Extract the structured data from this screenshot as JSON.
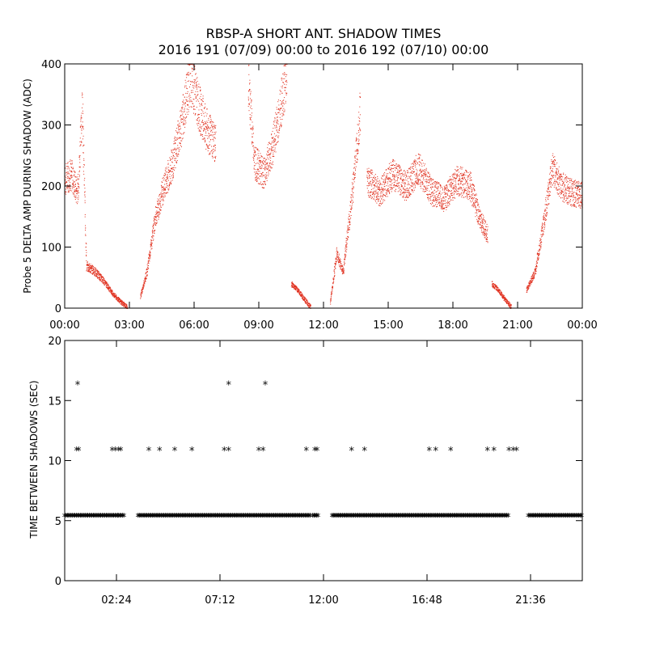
{
  "title_line1": "RBSP-A SHORT ANT. SHADOW TIMES",
  "title_line2": "2016 191 (07/09) 00:00 to 2016 192 (07/10) 00:00",
  "chart_data": [
    {
      "type": "scatter",
      "ylabel": "Probe 5 DELTA AMP DURING SHADOW (ADC)",
      "xlabel": "",
      "xlim_hours": [
        0,
        24
      ],
      "ylim": [
        0,
        400
      ],
      "x_tick_labels": [
        "00:00",
        "03:00",
        "06:00",
        "09:00",
        "12:00",
        "15:00",
        "18:00",
        "21:00",
        "00:00"
      ],
      "y_tick_labels": [
        "0",
        "100",
        "200",
        "300",
        "400"
      ],
      "color": "#e0301e",
      "segments": [
        {
          "x": [
            0.0,
            0.3,
            0.6,
            0.8,
            1.0,
            1.4,
            1.8,
            2.2,
            2.6,
            2.9
          ],
          "y": [
            210,
            220,
            190,
            330,
            70,
            60,
            45,
            25,
            10,
            2
          ]
        },
        {
          "x": [
            3.5,
            3.8,
            4.2,
            4.6,
            5.0,
            5.4,
            5.8,
            6.2,
            6.6,
            7.0
          ],
          "y": [
            20,
            60,
            150,
            200,
            240,
            300,
            380,
            330,
            290,
            270
          ]
        },
        {
          "x": [
            8.5,
            8.8,
            9.2,
            9.6,
            10.0,
            10.3
          ],
          "y": [
            370,
            240,
            220,
            260,
            330,
            390
          ]
        },
        {
          "x": [
            10.5,
            10.8,
            11.1,
            11.4
          ],
          "y": [
            40,
            30,
            15,
            2
          ]
        },
        {
          "x": [
            12.3,
            12.6,
            12.9,
            13.3,
            13.7
          ],
          "y": [
            10,
            90,
            60,
            180,
            330
          ]
        },
        {
          "x": [
            14.0,
            14.6,
            15.2,
            15.8,
            16.4,
            17.0,
            17.6,
            18.2,
            18.8,
            19.2,
            19.6
          ],
          "y": [
            210,
            190,
            220,
            200,
            230,
            190,
            180,
            210,
            200,
            150,
            120
          ]
        },
        {
          "x": [
            19.8,
            20.1,
            20.4,
            20.7
          ],
          "y": [
            40,
            30,
            15,
            2
          ]
        },
        {
          "x": [
            21.4,
            21.8,
            22.2,
            22.6,
            23.0,
            23.5,
            24.0
          ],
          "y": [
            30,
            60,
            140,
            230,
            200,
            190,
            185
          ]
        }
      ]
    },
    {
      "type": "scatter",
      "ylabel": "TIME BETWEEN SHADOWS (SEC)",
      "xlabel": "",
      "xlim_hours": [
        0,
        24
      ],
      "ylim": [
        0,
        20
      ],
      "x_tick_labels": [
        "02:24",
        "07:12",
        "12:00",
        "16:48",
        "21:36"
      ],
      "x_tick_hours": [
        2.4,
        7.2,
        12.0,
        16.8,
        21.6
      ],
      "y_tick_labels": [
        "0",
        "5",
        "10",
        "15",
        "20"
      ],
      "marker": "*",
      "baseline_value": 5.4,
      "baseline_ranges": [
        [
          0.0,
          2.5
        ],
        [
          2.5,
          2.8
        ],
        [
          3.4,
          11.4
        ],
        [
          11.5,
          11.8
        ],
        [
          12.4,
          20.6
        ],
        [
          21.5,
          24.0
        ]
      ],
      "points_11": [
        0.55,
        0.65,
        2.2,
        2.35,
        2.5,
        2.6,
        3.9,
        4.4,
        5.1,
        5.9,
        7.4,
        7.6,
        9.0,
        9.2,
        11.2,
        11.6,
        11.7,
        13.3,
        13.9,
        16.9,
        17.2,
        17.9,
        19.6,
        19.9,
        20.6,
        20.8,
        20.95
      ],
      "points_16_4": [
        0.6,
        7.6,
        9.3
      ]
    }
  ]
}
